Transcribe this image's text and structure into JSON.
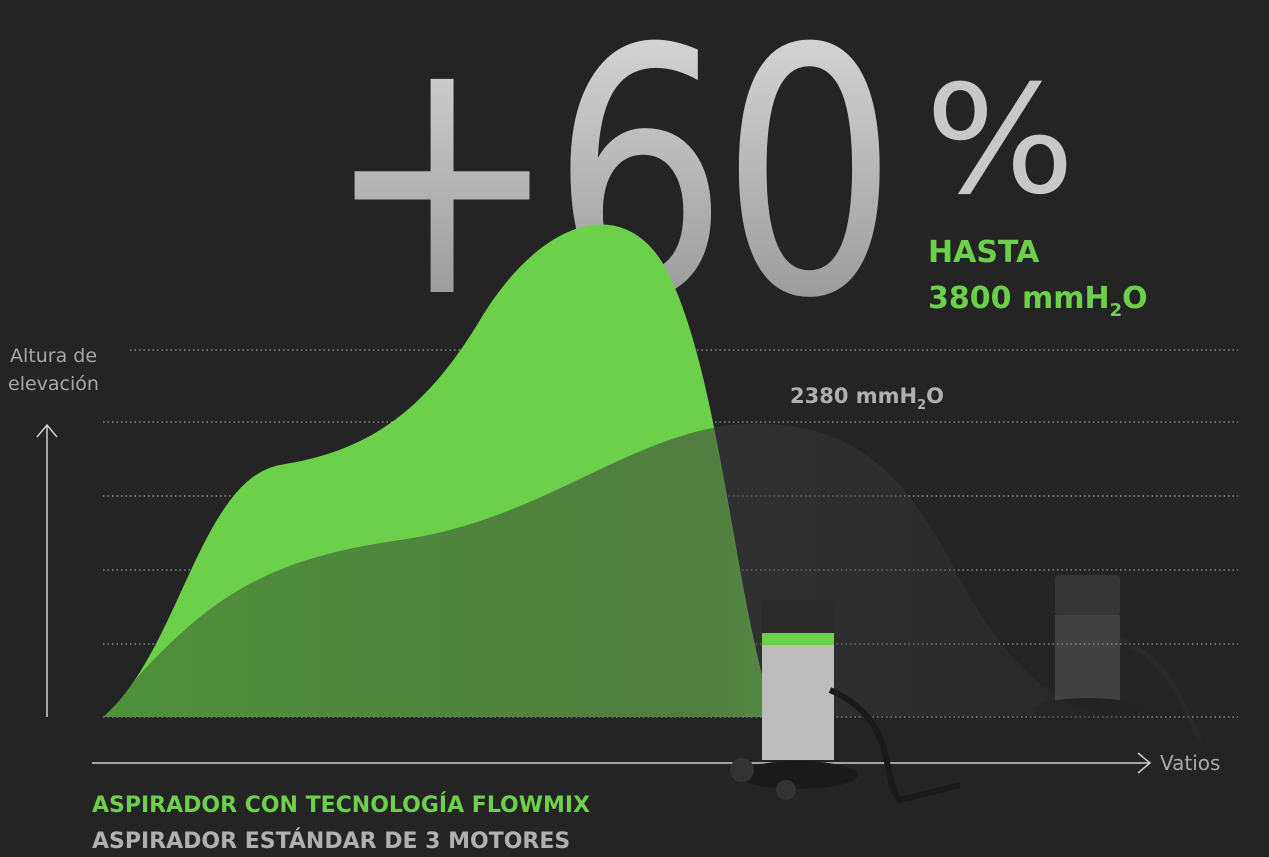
{
  "headline": {
    "number": "+60",
    "unit": "%"
  },
  "flowmix_peak": {
    "label": "HASTA",
    "value": "3800 mmH",
    "sub": "2",
    "suffix": "O"
  },
  "standard_peak": {
    "value": "2380 mmH",
    "sub": "2",
    "suffix": "O"
  },
  "y_axis_label": [
    "Altura de",
    "elevación"
  ],
  "x_axis_label": "Vatios",
  "legend": [
    "ASPIRADOR CON TECNOLOGÍA FLOWMIX",
    "ASPIRADOR ESTÁNDAR DE 3 MOTORES"
  ]
}
